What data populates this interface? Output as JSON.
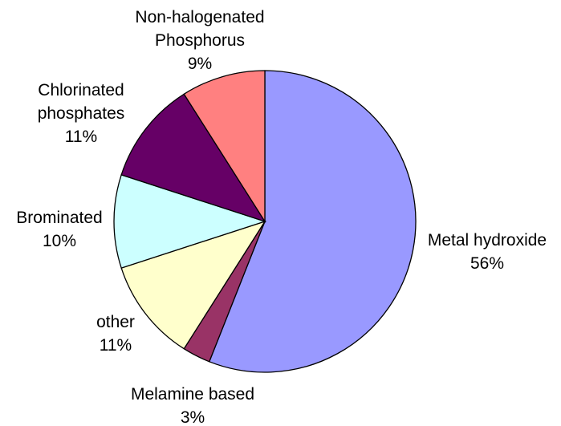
{
  "chart_data": {
    "type": "pie",
    "start_angle_deg": 0,
    "direction": "clockwise",
    "slices": [
      {
        "label": [
          "Metal hydroxide"
        ],
        "percent_label": "56%",
        "value": 56,
        "color": "#9999ff"
      },
      {
        "label": [
          "Melamine based"
        ],
        "percent_label": "3%",
        "value": 3,
        "color": "#993366"
      },
      {
        "label": [
          "other"
        ],
        "percent_label": "11%",
        "value": 11,
        "color": "#ffffcc"
      },
      {
        "label": [
          "Brominated"
        ],
        "percent_label": "10%",
        "value": 10,
        "color": "#ccffff"
      },
      {
        "label": [
          "Chlorinated",
          "phosphates"
        ],
        "percent_label": "11%",
        "value": 11,
        "color": "#660066"
      },
      {
        "label": [
          "Non-halogenated",
          "Phosphorus"
        ],
        "percent_label": "9%",
        "value": 9,
        "color": "#ff8080"
      }
    ]
  }
}
